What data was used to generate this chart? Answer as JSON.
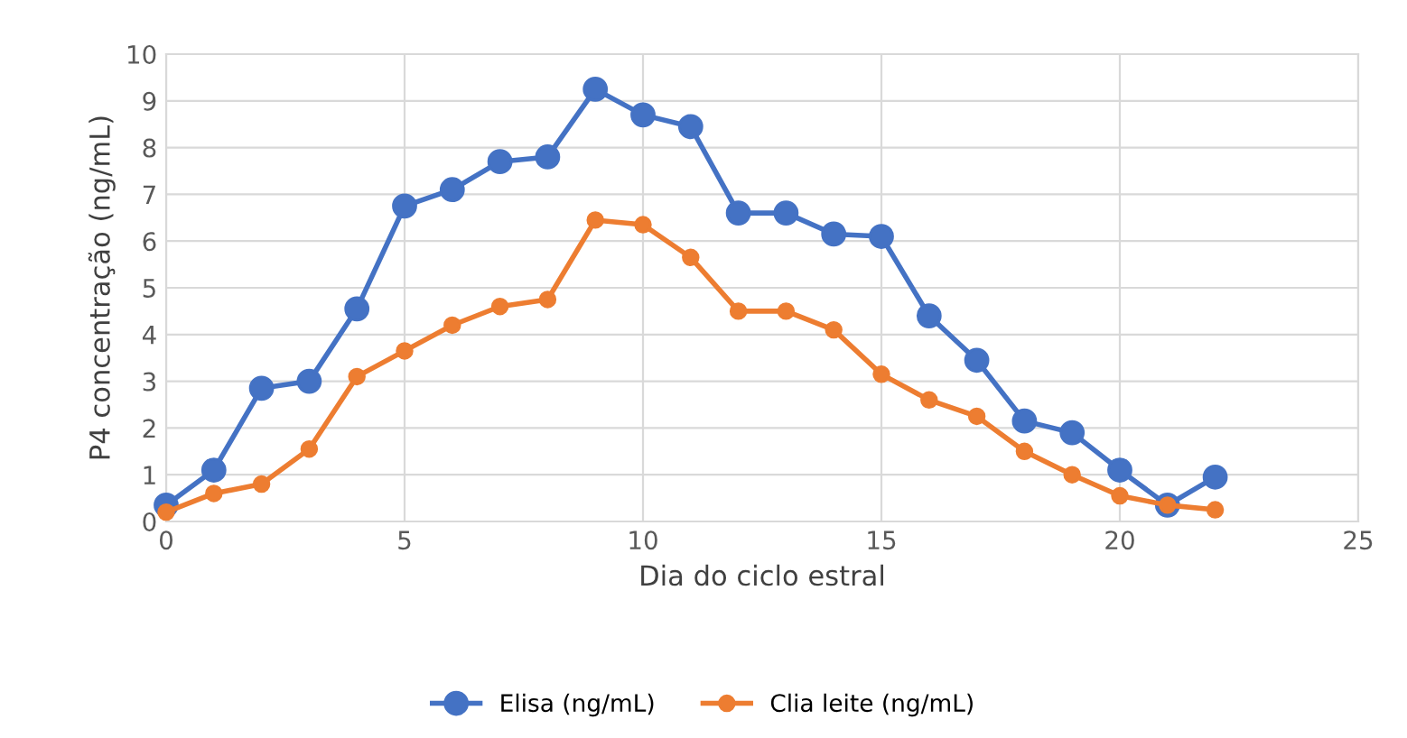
{
  "chart_data": {
    "type": "line",
    "xlabel": "Dia do ciclo estral",
    "ylabel": "P4 concentração (ng/mL)",
    "x": [
      0,
      1,
      2,
      3,
      4,
      5,
      6,
      7,
      8,
      9,
      10,
      11,
      12,
      13,
      14,
      15,
      16,
      17,
      18,
      19,
      20,
      21,
      22
    ],
    "series": [
      {
        "name": "Elisa (ng/mL)",
        "color": "#4472c4",
        "values": [
          0.35,
          1.1,
          2.85,
          3.0,
          4.55,
          6.75,
          7.1,
          7.7,
          7.8,
          9.25,
          8.7,
          8.45,
          6.6,
          6.6,
          6.15,
          6.1,
          4.4,
          3.45,
          2.15,
          1.9,
          1.1,
          0.35,
          0.95
        ]
      },
      {
        "name": "Clia leite (ng/mL)",
        "color": "#ed7d31",
        "values": [
          0.2,
          0.6,
          0.8,
          1.55,
          3.1,
          3.65,
          4.2,
          4.6,
          4.75,
          6.45,
          6.35,
          5.65,
          4.5,
          4.5,
          4.1,
          3.15,
          2.6,
          2.25,
          1.5,
          1.0,
          0.55,
          0.35,
          0.25
        ]
      }
    ],
    "xlim": [
      0,
      25
    ],
    "xticks": [
      0,
      5,
      10,
      15,
      20,
      25
    ],
    "ylim": [
      0,
      10
    ],
    "yticks": [
      0,
      1,
      2,
      3,
      4,
      5,
      6,
      7,
      8,
      9,
      10
    ],
    "grid": true,
    "legend": "bottom",
    "marker": "circle",
    "line_style": "solid"
  }
}
